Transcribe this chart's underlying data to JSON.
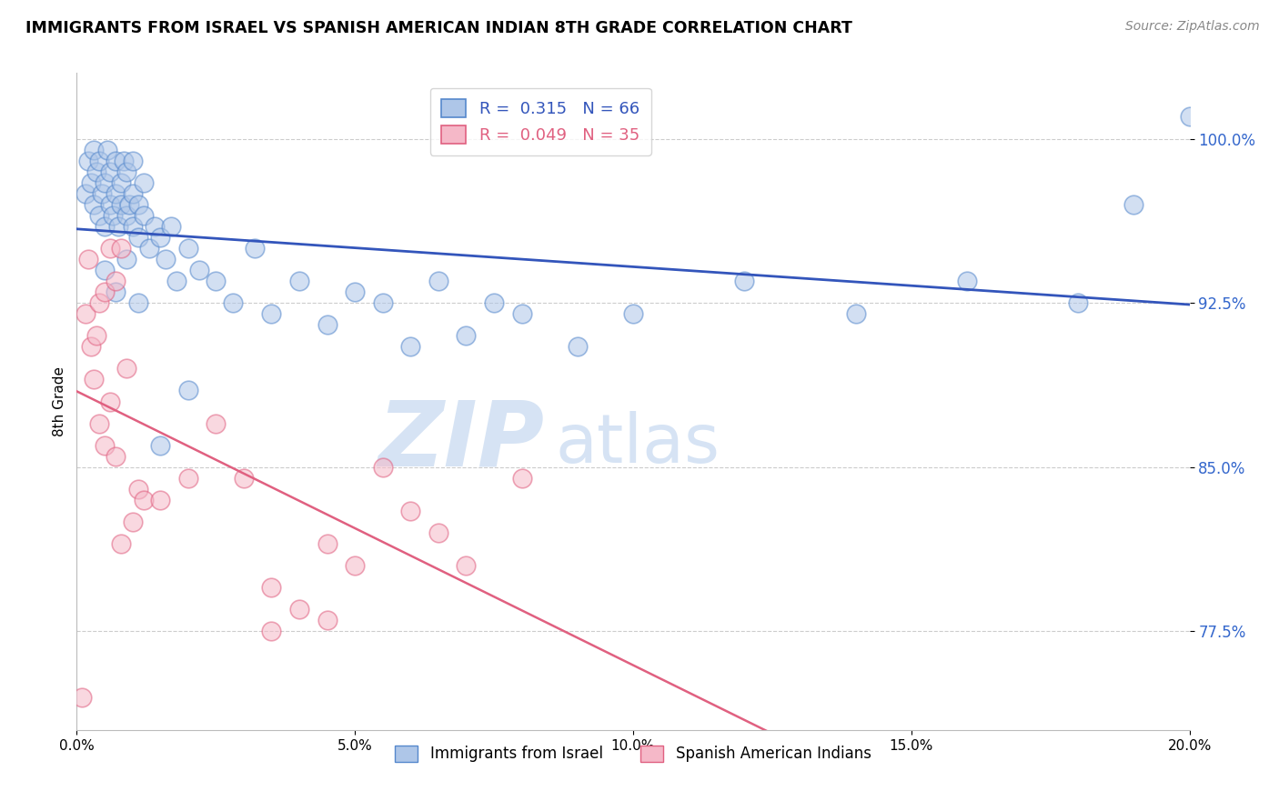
{
  "title": "IMMIGRANTS FROM ISRAEL VS SPANISH AMERICAN INDIAN 8TH GRADE CORRELATION CHART",
  "source_text": "Source: ZipAtlas.com",
  "ylabel": "8th Grade",
  "xlim": [
    0.0,
    20.0
  ],
  "ylim": [
    73.0,
    103.0
  ],
  "y_ticks": [
    77.5,
    85.0,
    92.5,
    100.0
  ],
  "y_tick_labels": [
    "77.5%",
    "85.0%",
    "92.5%",
    "100.0%"
  ],
  "x_ticks": [
    0,
    5,
    10,
    15,
    20
  ],
  "x_tick_labels": [
    "0.0%",
    "5.0%",
    "10.0%",
    "15.0%",
    "20.0%"
  ],
  "blue_R": 0.315,
  "blue_N": 66,
  "pink_R": 0.049,
  "pink_N": 35,
  "blue_color": "#aec6e8",
  "pink_color": "#f5b8c8",
  "blue_edge_color": "#5588cc",
  "pink_edge_color": "#e06080",
  "blue_line_color": "#3355bb",
  "pink_line_color": "#e06080",
  "watermark_zip": "ZIP",
  "watermark_atlas": "atlas",
  "watermark_color_zip": "#c5d8f0",
  "watermark_color_atlas": "#c5d8f0",
  "legend_label_blue": "Immigrants from Israel",
  "legend_label_pink": "Spanish American Indians",
  "blue_points_x": [
    0.15,
    0.2,
    0.25,
    0.3,
    0.3,
    0.35,
    0.4,
    0.4,
    0.45,
    0.5,
    0.5,
    0.55,
    0.6,
    0.6,
    0.65,
    0.7,
    0.7,
    0.75,
    0.8,
    0.8,
    0.85,
    0.9,
    0.9,
    0.95,
    1.0,
    1.0,
    1.0,
    1.1,
    1.1,
    1.2,
    1.2,
    1.3,
    1.4,
    1.5,
    1.6,
    1.7,
    1.8,
    2.0,
    2.2,
    2.5,
    2.8,
    3.2,
    3.5,
    4.0,
    4.5,
    5.0,
    5.5,
    6.0,
    6.5,
    7.0,
    7.5,
    8.0,
    9.0,
    10.0,
    12.0,
    14.0,
    16.0,
    18.0,
    19.0,
    20.0,
    0.5,
    0.7,
    0.9,
    1.1,
    1.5,
    2.0
  ],
  "blue_points_y": [
    97.5,
    99.0,
    98.0,
    97.0,
    99.5,
    98.5,
    96.5,
    99.0,
    97.5,
    98.0,
    96.0,
    99.5,
    97.0,
    98.5,
    96.5,
    99.0,
    97.5,
    96.0,
    98.0,
    97.0,
    99.0,
    96.5,
    98.5,
    97.0,
    96.0,
    97.5,
    99.0,
    95.5,
    97.0,
    96.5,
    98.0,
    95.0,
    96.0,
    95.5,
    94.5,
    96.0,
    93.5,
    95.0,
    94.0,
    93.5,
    92.5,
    95.0,
    92.0,
    93.5,
    91.5,
    93.0,
    92.5,
    90.5,
    93.5,
    91.0,
    92.5,
    92.0,
    90.5,
    92.0,
    93.5,
    92.0,
    93.5,
    92.5,
    97.0,
    101.0,
    94.0,
    93.0,
    94.5,
    92.5,
    86.0,
    88.5
  ],
  "pink_points_x": [
    0.1,
    0.15,
    0.2,
    0.25,
    0.3,
    0.35,
    0.4,
    0.4,
    0.5,
    0.5,
    0.6,
    0.6,
    0.7,
    0.7,
    0.8,
    0.8,
    0.9,
    1.0,
    1.1,
    1.2,
    1.5,
    2.0,
    2.5,
    3.0,
    3.5,
    3.5,
    4.0,
    4.5,
    4.5,
    5.0,
    5.5,
    6.0,
    6.5,
    7.0,
    8.0
  ],
  "pink_points_y": [
    74.5,
    92.0,
    94.5,
    90.5,
    89.0,
    91.0,
    87.0,
    92.5,
    93.0,
    86.0,
    95.0,
    88.0,
    93.5,
    85.5,
    95.0,
    81.5,
    89.5,
    82.5,
    84.0,
    83.5,
    83.5,
    84.5,
    87.0,
    84.5,
    79.5,
    77.5,
    78.5,
    78.0,
    81.5,
    80.5,
    85.0,
    83.0,
    82.0,
    80.5,
    84.5
  ]
}
